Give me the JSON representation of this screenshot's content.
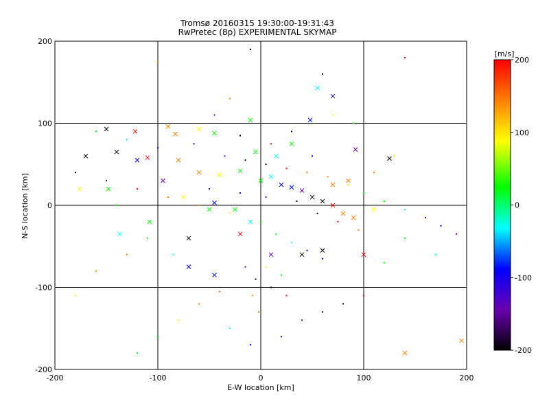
{
  "chart_data": {
    "type": "scatter",
    "title": "Tromsø 20160315 19:30:00-19:31:43",
    "subtitle": "RwPretec (8p) EXPERIMENTAL SKYMAP",
    "xlabel": "E-W location [km]",
    "ylabel": "N-S location [km]",
    "xlim": [
      -200,
      200
    ],
    "ylim": [
      -200,
      200
    ],
    "xticks": [
      -200,
      -100,
      0,
      100,
      200
    ],
    "yticks": [
      -200,
      -100,
      0,
      100,
      200
    ],
    "grid": true,
    "colorbar": {
      "label": "[m/s]",
      "range": [
        -200,
        200
      ],
      "ticks": [
        200,
        100,
        0,
        -100,
        -200
      ],
      "colors": [
        "#000000",
        "#6a00b0",
        "#0000ff",
        "#00ffff",
        "#00ff00",
        "#ffff00",
        "#ff8000",
        "#ff0000"
      ]
    },
    "series": [
      {
        "marker": "cross",
        "points": [
          [
            -150,
            93
          ],
          [
            -122,
            90
          ],
          [
            -90,
            96
          ],
          [
            -83,
            87
          ],
          [
            -60,
            93
          ],
          [
            -45,
            88
          ],
          [
            -10,
            104
          ],
          [
            55,
            143
          ],
          [
            70,
            133
          ],
          [
            48,
            104
          ],
          [
            92,
            68
          ],
          [
            -170,
            60
          ],
          [
            -140,
            65
          ],
          [
            -110,
            58
          ],
          [
            -80,
            55
          ],
          [
            -60,
            40
          ],
          [
            -40,
            37
          ],
          [
            -20,
            42
          ],
          [
            0,
            30
          ],
          [
            10,
            35
          ],
          [
            20,
            25
          ],
          [
            30,
            22
          ],
          [
            40,
            18
          ],
          [
            50,
            10
          ],
          [
            60,
            5
          ],
          [
            70,
            0
          ],
          [
            80,
            -10
          ],
          [
            90,
            -15
          ],
          [
            110,
            -5
          ],
          [
            -50,
            -5
          ],
          [
            -25,
            -5
          ],
          [
            -10,
            -20
          ],
          [
            -70,
            -75
          ],
          [
            -45,
            -85
          ],
          [
            10,
            -60
          ],
          [
            40,
            -60
          ],
          [
            60,
            -55
          ],
          [
            100,
            -60
          ],
          [
            140,
            -180
          ],
          [
            195,
            -165
          ],
          [
            -176,
            20
          ],
          [
            -148,
            20
          ],
          [
            -108,
            -20
          ],
          [
            -137,
            -35
          ],
          [
            -45,
            3
          ],
          [
            -120,
            55
          ],
          [
            -95,
            30
          ],
          [
            125,
            57
          ],
          [
            -70,
            -40
          ],
          [
            -20,
            -35
          ],
          [
            70,
            25
          ],
          [
            85,
            30
          ],
          [
            -75,
            10
          ],
          [
            -5,
            65
          ],
          [
            30,
            75
          ],
          [
            15,
            60
          ]
        ]
      },
      {
        "marker": "dot",
        "points": [
          [
            -10,
            190
          ],
          [
            140,
            180
          ],
          [
            -100,
            175
          ],
          [
            -30,
            130
          ],
          [
            70,
            110
          ],
          [
            90,
            100
          ],
          [
            -160,
            90
          ],
          [
            -130,
            80
          ],
          [
            -100,
            70
          ],
          [
            -65,
            75
          ],
          [
            -35,
            60
          ],
          [
            -15,
            55
          ],
          [
            5,
            50
          ],
          [
            25,
            45
          ],
          [
            45,
            40
          ],
          [
            65,
            35
          ],
          [
            85,
            25
          ],
          [
            100,
            15
          ],
          [
            120,
            5
          ],
          [
            140,
            -5
          ],
          [
            160,
            -15
          ],
          [
            175,
            -25
          ],
          [
            190,
            -35
          ],
          [
            -180,
            40
          ],
          [
            -150,
            30
          ],
          [
            -120,
            20
          ],
          [
            -90,
            10
          ],
          [
            -60,
            0
          ],
          [
            -30,
            -10
          ],
          [
            0,
            -20
          ],
          [
            15,
            -35
          ],
          [
            30,
            -45
          ],
          [
            45,
            -55
          ],
          [
            60,
            -65
          ],
          [
            -15,
            -75
          ],
          [
            -5,
            -90
          ],
          [
            10,
            -100
          ],
          [
            25,
            -110
          ],
          [
            -40,
            -105
          ],
          [
            -60,
            -120
          ],
          [
            -80,
            -140
          ],
          [
            -100,
            -160
          ],
          [
            -120,
            -180
          ],
          [
            -30,
            -150
          ],
          [
            -10,
            -170
          ],
          [
            20,
            -160
          ],
          [
            40,
            -140
          ],
          [
            60,
            -130
          ],
          [
            80,
            -120
          ],
          [
            100,
            -110
          ],
          [
            -130,
            -60
          ],
          [
            -160,
            -80
          ],
          [
            -180,
            -110
          ],
          [
            140,
            -40
          ],
          [
            120,
            -70
          ],
          [
            170,
            -60
          ],
          [
            -50,
            20
          ],
          [
            -20,
            15
          ],
          [
            5,
            10
          ],
          [
            35,
            5
          ],
          [
            55,
            -10
          ],
          [
            75,
            -20
          ],
          [
            95,
            -30
          ],
          [
            110,
            40
          ],
          [
            130,
            60
          ],
          [
            -140,
            0
          ],
          [
            -110,
            -40
          ],
          [
            -85,
            -60
          ],
          [
            50,
            60
          ],
          [
            30,
            90
          ],
          [
            -45,
            110
          ],
          [
            60,
            160
          ],
          [
            -20,
            85
          ],
          [
            10,
            75
          ],
          [
            -2,
            -130
          ],
          [
            -8,
            -110
          ],
          [
            5,
            -75
          ],
          [
            20,
            -85
          ]
        ]
      }
    ]
  }
}
